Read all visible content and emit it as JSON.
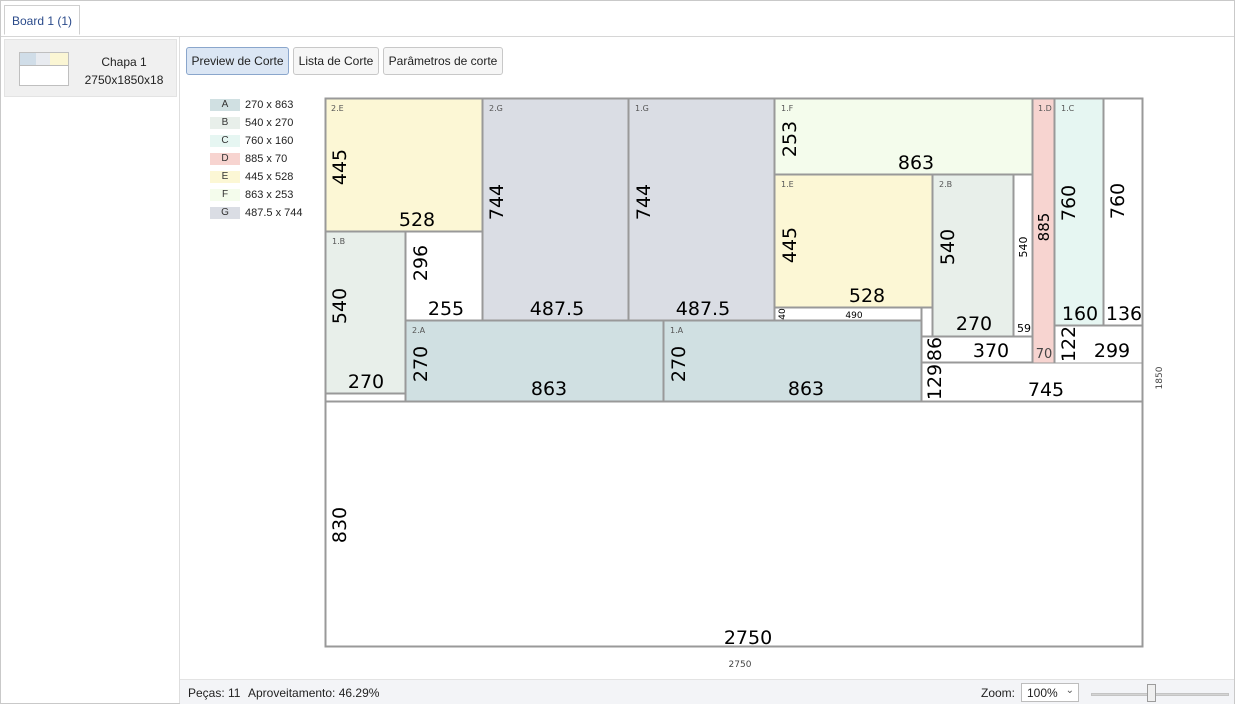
{
  "tabs": [
    {
      "label": "Board 1 (1)"
    }
  ],
  "sidebar": {
    "boards": [
      {
        "name": "Chapa 1",
        "dims": "2750x1850x18"
      }
    ]
  },
  "toolbar": {
    "preview_label": "Preview de Corte",
    "list_label": "Lista de Corte",
    "params_label": "Parâmetros de corte"
  },
  "colors": {
    "A": "#d0e0e2",
    "B": "#e8efea",
    "C": "#e6f6f2",
    "D": "#f7d4d0",
    "E": "#fcf7d5",
    "F": "#f4fcec",
    "G": "#dadde4",
    "waste": "#ffffff"
  },
  "legend": [
    {
      "key": "A",
      "size": "270 x 863"
    },
    {
      "key": "B",
      "size": "540 x 270"
    },
    {
      "key": "C",
      "size": "760 x 160"
    },
    {
      "key": "D",
      "size": "885 x 70"
    },
    {
      "key": "E",
      "size": "445 x 528"
    },
    {
      "key": "F",
      "size": "863 x 253"
    },
    {
      "key": "G",
      "size": "487.5 x 744"
    }
  ],
  "board": {
    "length_label": "2750",
    "width_label": "1850",
    "parts": [
      {
        "id": "2.E",
        "type": "E",
        "w": "528",
        "h": "445"
      },
      {
        "id": "2.G",
        "type": "G",
        "w": "487.5",
        "h": "744"
      },
      {
        "id": "1.G",
        "type": "G",
        "w": "487.5",
        "h": "744"
      },
      {
        "id": "1.F",
        "type": "F",
        "w": "863",
        "h": "253"
      },
      {
        "id": "1.D",
        "type": "D",
        "w": "70",
        "h": "885"
      },
      {
        "id": "1.C",
        "type": "C",
        "w": "160",
        "h": "760"
      },
      {
        "id": "1.E",
        "type": "E",
        "w": "528",
        "h": "445"
      },
      {
        "id": "2.B",
        "type": "B",
        "w": "270",
        "h": "540"
      },
      {
        "id": "1.B",
        "type": "B",
        "w": "270",
        "h": "540"
      },
      {
        "id": "2.A",
        "type": "A",
        "w": "863",
        "h": "270"
      },
      {
        "id": "1.A",
        "type": "A",
        "w": "863",
        "h": "270"
      }
    ],
    "waste": [
      {
        "w": "255",
        "h": "296"
      },
      {
        "w": "136",
        "h": "760"
      },
      {
        "w": "59",
        "h": "540"
      },
      {
        "w": "490",
        "h": "40"
      },
      {
        "w": "370",
        "h": "86"
      },
      {
        "w": "299",
        "h": "122"
      },
      {
        "w": "745",
        "h": "129"
      },
      {
        "w": "2750",
        "h": "830"
      }
    ]
  },
  "status": {
    "pieces": "Peças: 11",
    "yield": "Aproveitamento: 46.29%",
    "zoom_label": "Zoom:",
    "zoom_value": "100%",
    "zoom_level_percent": 100
  }
}
